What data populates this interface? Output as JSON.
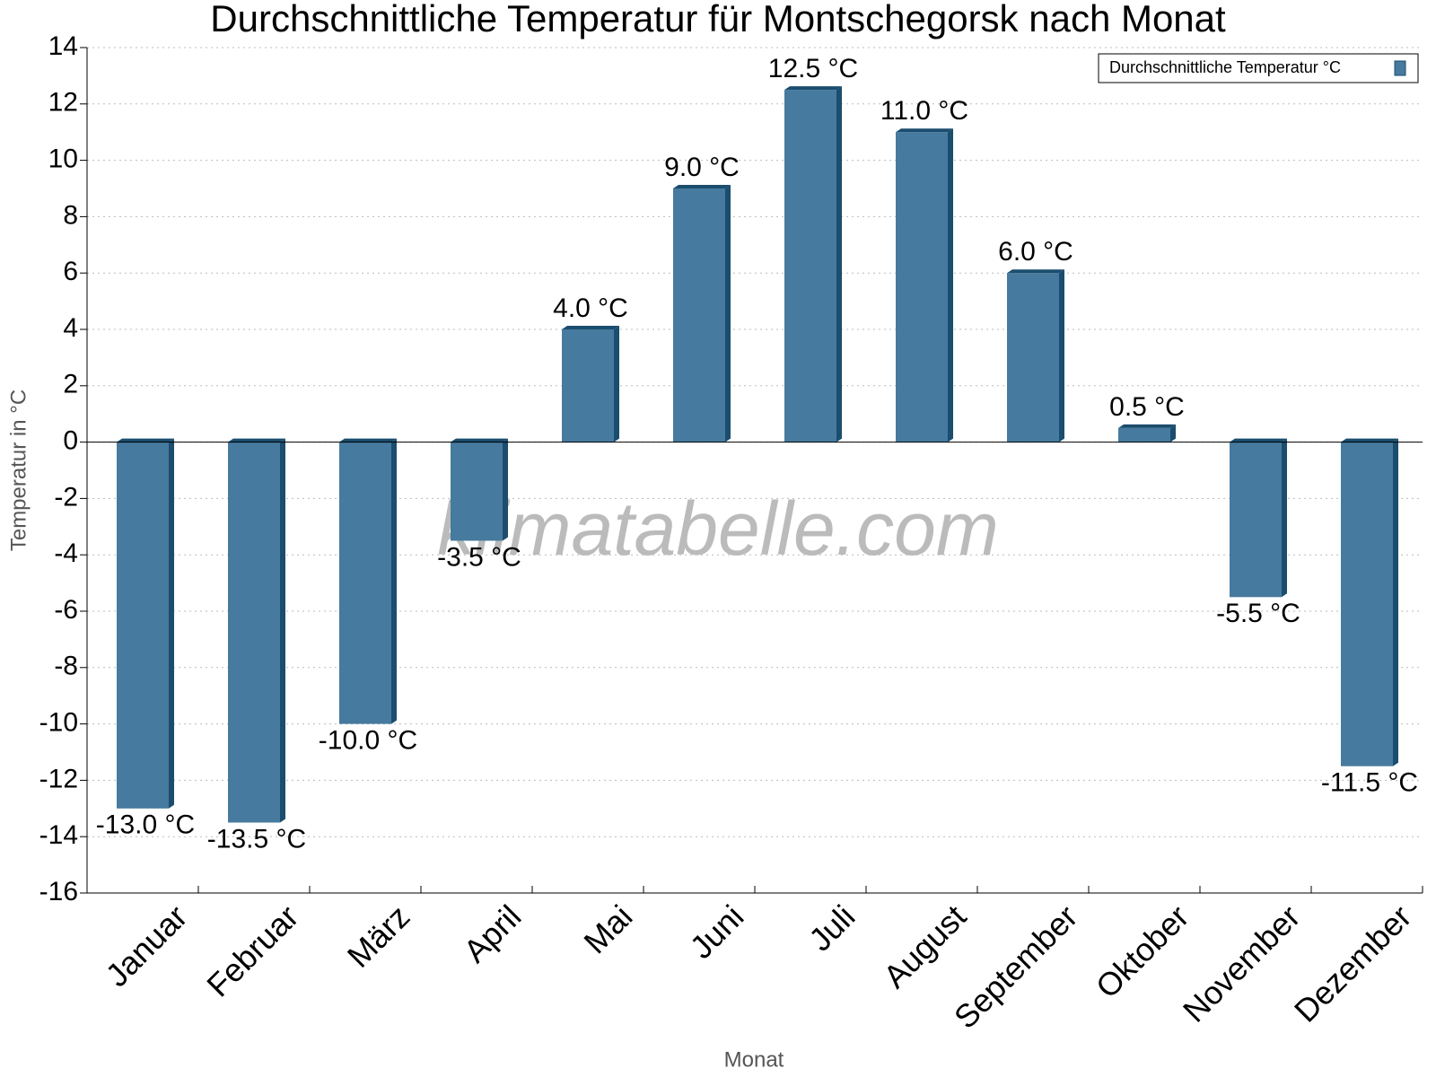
{
  "chart_data": {
    "type": "bar",
    "title": "Durchschnittliche Temperatur für Montschegorsk nach Monat",
    "x_label": "Monat",
    "y_label": "Temperatur in °C",
    "watermark": "klimatabelle.com",
    "categories": [
      "Januar",
      "Februar",
      "März",
      "April",
      "Mai",
      "Juni",
      "Juli",
      "August",
      "September",
      "Oktober",
      "November",
      "Dezember"
    ],
    "series": [
      {
        "name": "Durchschnittliche Temperatur °C",
        "color": "#467a9e",
        "values": [
          -13.0,
          -13.5,
          -10.0,
          -3.5,
          4.0,
          9.0,
          12.5,
          11.0,
          6.0,
          0.5,
          -5.5,
          -11.5
        ],
        "value_labels": [
          "-13.0 °C",
          "-13.5 °C",
          "-10.0 °C",
          "-3.5 °C",
          "4.0 °C",
          "9.0 °C",
          "12.5 °C",
          "11.0 °C",
          "6.0 °C",
          "0.5 °C",
          "-5.5 °C",
          "-11.5 °C"
        ]
      }
    ],
    "ylim": [
      -16,
      14
    ],
    "yticks": [
      -16,
      -14,
      -12,
      -10,
      -8,
      -6,
      -4,
      -2,
      0,
      2,
      4,
      6,
      8,
      10,
      12,
      14
    ],
    "grid": true,
    "legend": "top-right"
  }
}
